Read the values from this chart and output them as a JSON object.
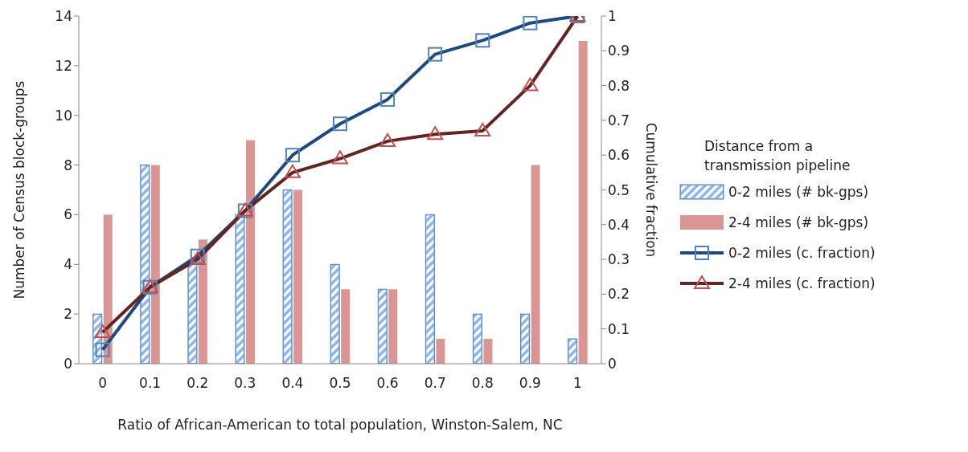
{
  "chart_data": {
    "type": "bar",
    "xlabel": "Ratio of African-American to total population, Winston-Salem, NC",
    "ylabel": "Number of Census block-groups",
    "y2label": "Cumulative fraction",
    "legend_title": "Distance from a transmission pipeline",
    "legend": "right",
    "grid": false,
    "categories": [
      "0",
      "0.1",
      "0.2",
      "0.3",
      "0.4",
      "0.5",
      "0.6",
      "0.7",
      "0.8",
      "0.9",
      "1"
    ],
    "ylim": [
      0,
      14
    ],
    "yticks": [
      0,
      2,
      4,
      6,
      8,
      10,
      12,
      14
    ],
    "y2lim": [
      0,
      1
    ],
    "y2ticks": [
      0,
      0.1,
      0.2,
      0.3,
      0.4,
      0.5,
      0.6,
      0.7,
      0.8,
      0.9,
      1
    ],
    "series": [
      {
        "name": "0-2 miles (# bk-gps)",
        "color": "#8db4e2",
        "values": [
          2,
          8,
          4,
          6,
          7,
          4,
          3,
          6,
          2,
          2,
          1
        ]
      },
      {
        "name": "2-4 miles (# bk-gps)",
        "color": "#d99694",
        "values": [
          6,
          8,
          5,
          9,
          7,
          3,
          3,
          1,
          1,
          8,
          13
        ]
      },
      {
        "name": "0-2 miles (c. fraction)",
        "type": "line",
        "axis": "y2",
        "color": "#1f497d",
        "marker": "square",
        "line_style": "solid",
        "values": [
          0.04,
          0.22,
          0.31,
          0.44,
          0.6,
          0.69,
          0.76,
          0.89,
          0.93,
          0.98,
          1
        ]
      },
      {
        "name": "2-4 miles (c. fraction)",
        "type": "line",
        "axis": "y2",
        "color": "#632523",
        "marker": "triangle",
        "line_style": "solid",
        "values": [
          0.09,
          0.22,
          0.3,
          0.44,
          0.55,
          0.59,
          0.64,
          0.66,
          0.67,
          0.8,
          1
        ]
      }
    ]
  }
}
